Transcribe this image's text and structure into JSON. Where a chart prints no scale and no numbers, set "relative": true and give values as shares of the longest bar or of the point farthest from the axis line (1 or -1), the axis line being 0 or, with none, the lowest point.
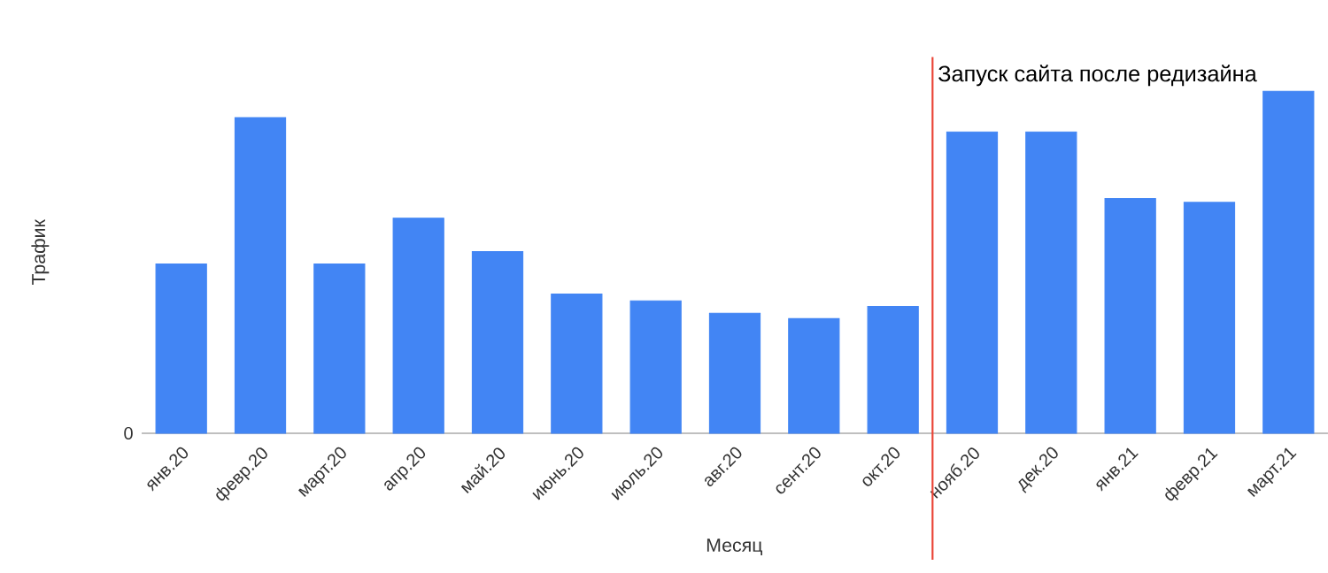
{
  "chart_data": {
    "type": "bar",
    "xlabel": "Месяц",
    "ylabel": "Трафик",
    "relative": true,
    "color": "#4285f4",
    "annotations": [
      "0"
    ],
    "ref_lines": [
      {
        "axis": "x",
        "value": "нояб.20",
        "label": "Запуск сайта после редизайна",
        "color": "#ea4335"
      }
    ],
    "categories": [
      "янв.20",
      "февр.20",
      "март.20",
      "апр.20",
      "май.20",
      "июнь.20",
      "июль.20",
      "авг.20",
      "сент.20",
      "окт.20",
      "нояб.20",
      "дек.20",
      "янв.21",
      "февр.21",
      "март.21"
    ],
    "values": [
      0.495,
      0.923,
      0.495,
      0.629,
      0.531,
      0.407,
      0.387,
      0.351,
      0.335,
      0.371,
      0.881,
      0.881,
      0.686,
      0.675,
      1
    ]
  }
}
